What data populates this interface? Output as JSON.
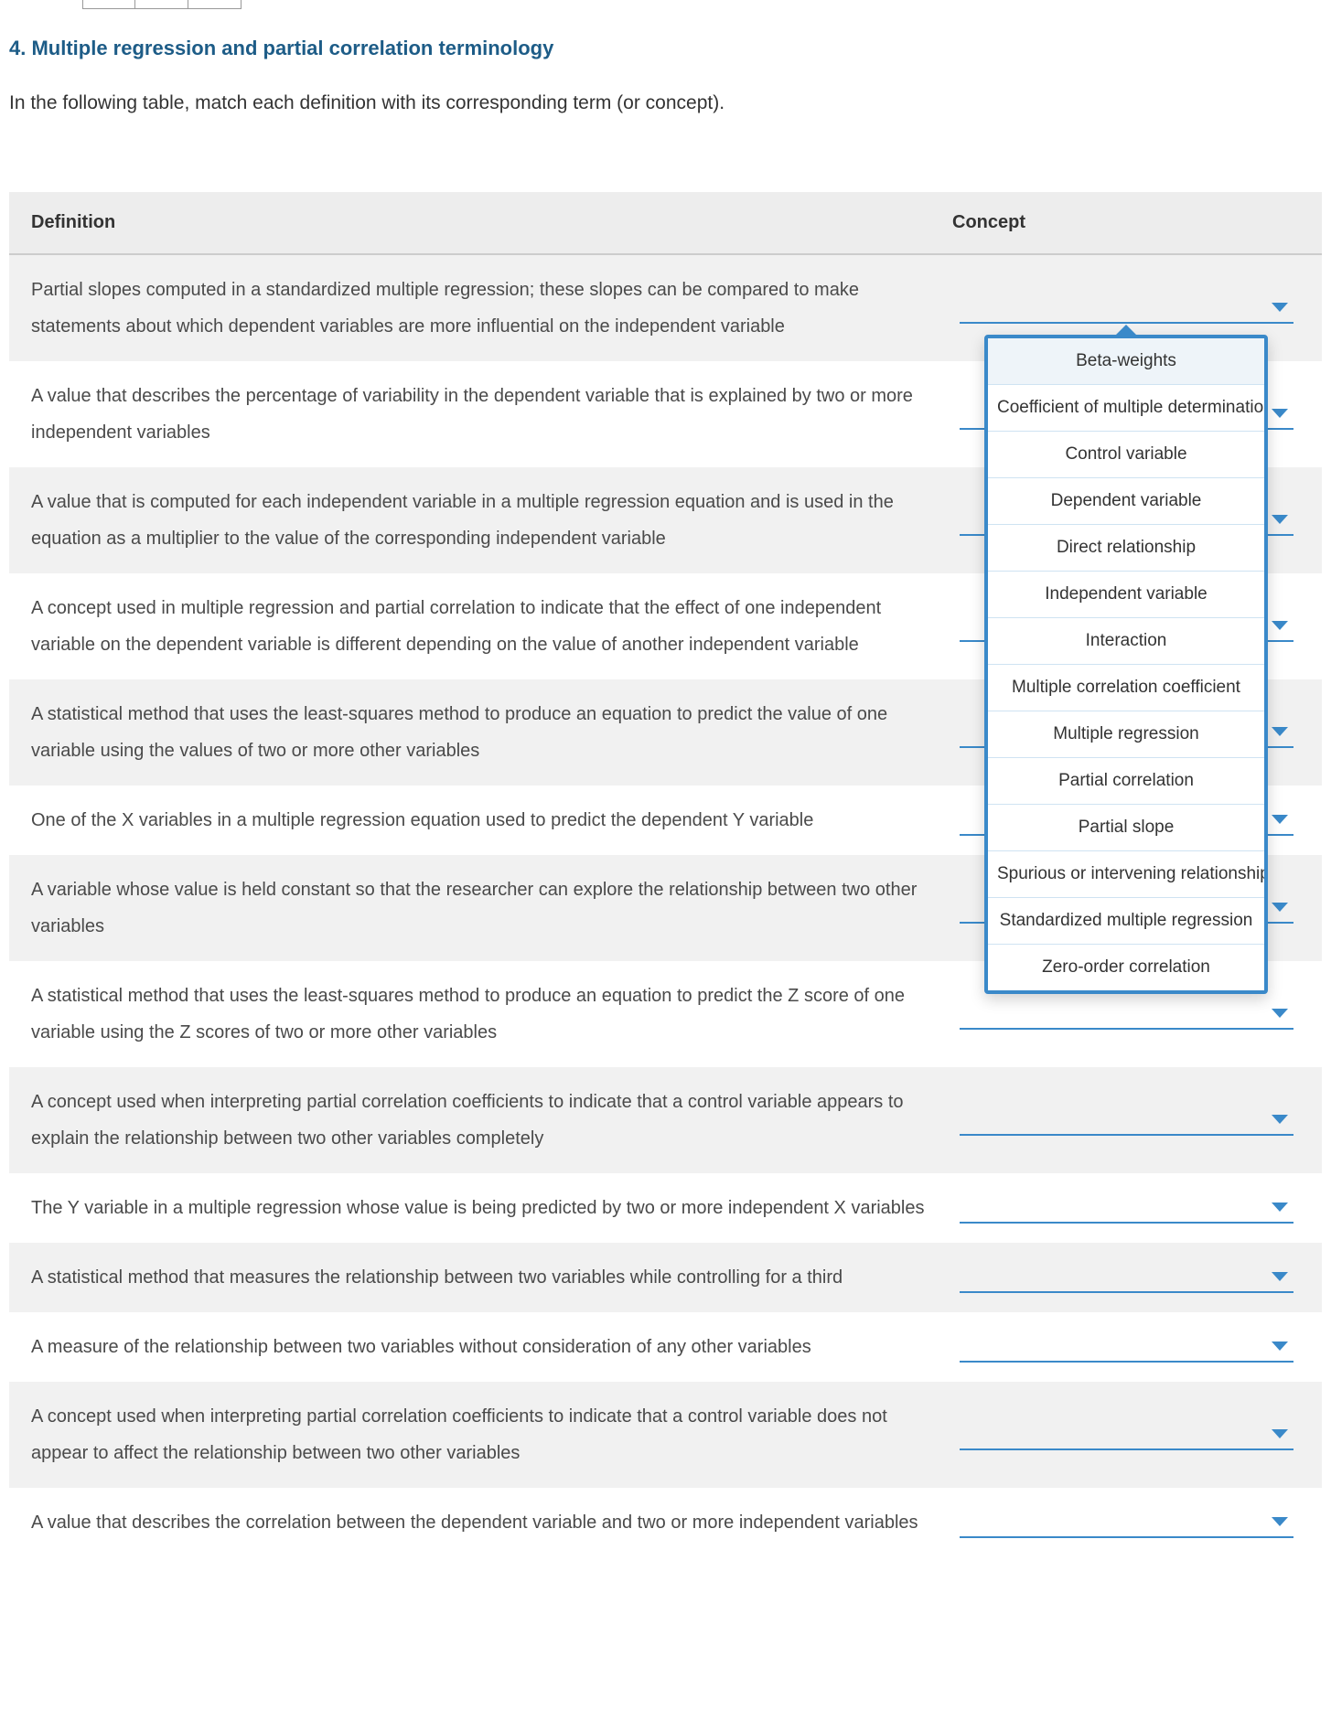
{
  "colors": {
    "title": "#1d5c87",
    "accent": "#3a89c9",
    "row_alt_bg": "#f1f1f1",
    "header_bg": "#ededed",
    "text": "#333333",
    "def_text": "#4a4a4a",
    "dropdown_border": "#3a89c9",
    "dropdown_divider": "#cfe3f2",
    "highlight_bg": "#eef4f9"
  },
  "title": "4. Multiple regression and partial correlation terminology",
  "instruction": "In the following table, match each definition with its corresponding term (or concept).",
  "headers": {
    "definition": "Definition",
    "concept": "Concept"
  },
  "definitions": [
    "Partial slopes computed in a standardized multiple regression; these slopes can be compared to make statements about which dependent variables are more influential on the independent variable",
    "A value that describes the percentage of variability in the dependent variable that is explained by two or more independent variables",
    "A value that is computed for each independent variable in a multiple regression equation and is used in the equation as a multiplier to the value of the corresponding independent variable",
    "A concept used in multiple regression and partial correlation to indicate that the effect of one independent variable on the dependent variable is different depending on the value of another independent variable",
    "A statistical method that uses the least-squares method to produce an equation to predict the value of one variable using the values of two or more other variables",
    "One of the X variables in a multiple regression equation used to predict the dependent Y variable",
    "A variable whose value is held constant so that the researcher can explore the relationship between two other variables",
    "A statistical method that uses the least-squares method to produce an equation to predict the Z score of one variable using the Z scores of two or more other variables",
    "A concept used when interpreting partial correlation coefficients to indicate that a control variable appears to explain the relationship between two other variables completely",
    "The Y variable in a multiple regression whose value is being predicted by two or more independent X variables",
    "A statistical method that measures the relationship between two variables while controlling for a third",
    "A measure of the relationship between two variables without consideration of any other variables",
    "A concept used when interpreting partial correlation coefficients to indicate that a control variable does not appear to affect the relationship between two other variables",
    "A value that describes the correlation between the dependent variable and two or more independent variables"
  ],
  "dropdown_options": [
    "Beta-weights",
    "Coefficient of multiple determination",
    "Control variable",
    "Dependent variable",
    "Direct relationship",
    "Independent variable",
    "Interaction",
    "Multiple correlation coefficient",
    "Multiple regression",
    "Partial correlation",
    "Partial slope",
    "Spurious or intervening relationship",
    "Standardized multiple regression",
    "Zero-order correlation"
  ],
  "dropdown_highlighted_index": 0,
  "open_dropdown_for_row": 0
}
